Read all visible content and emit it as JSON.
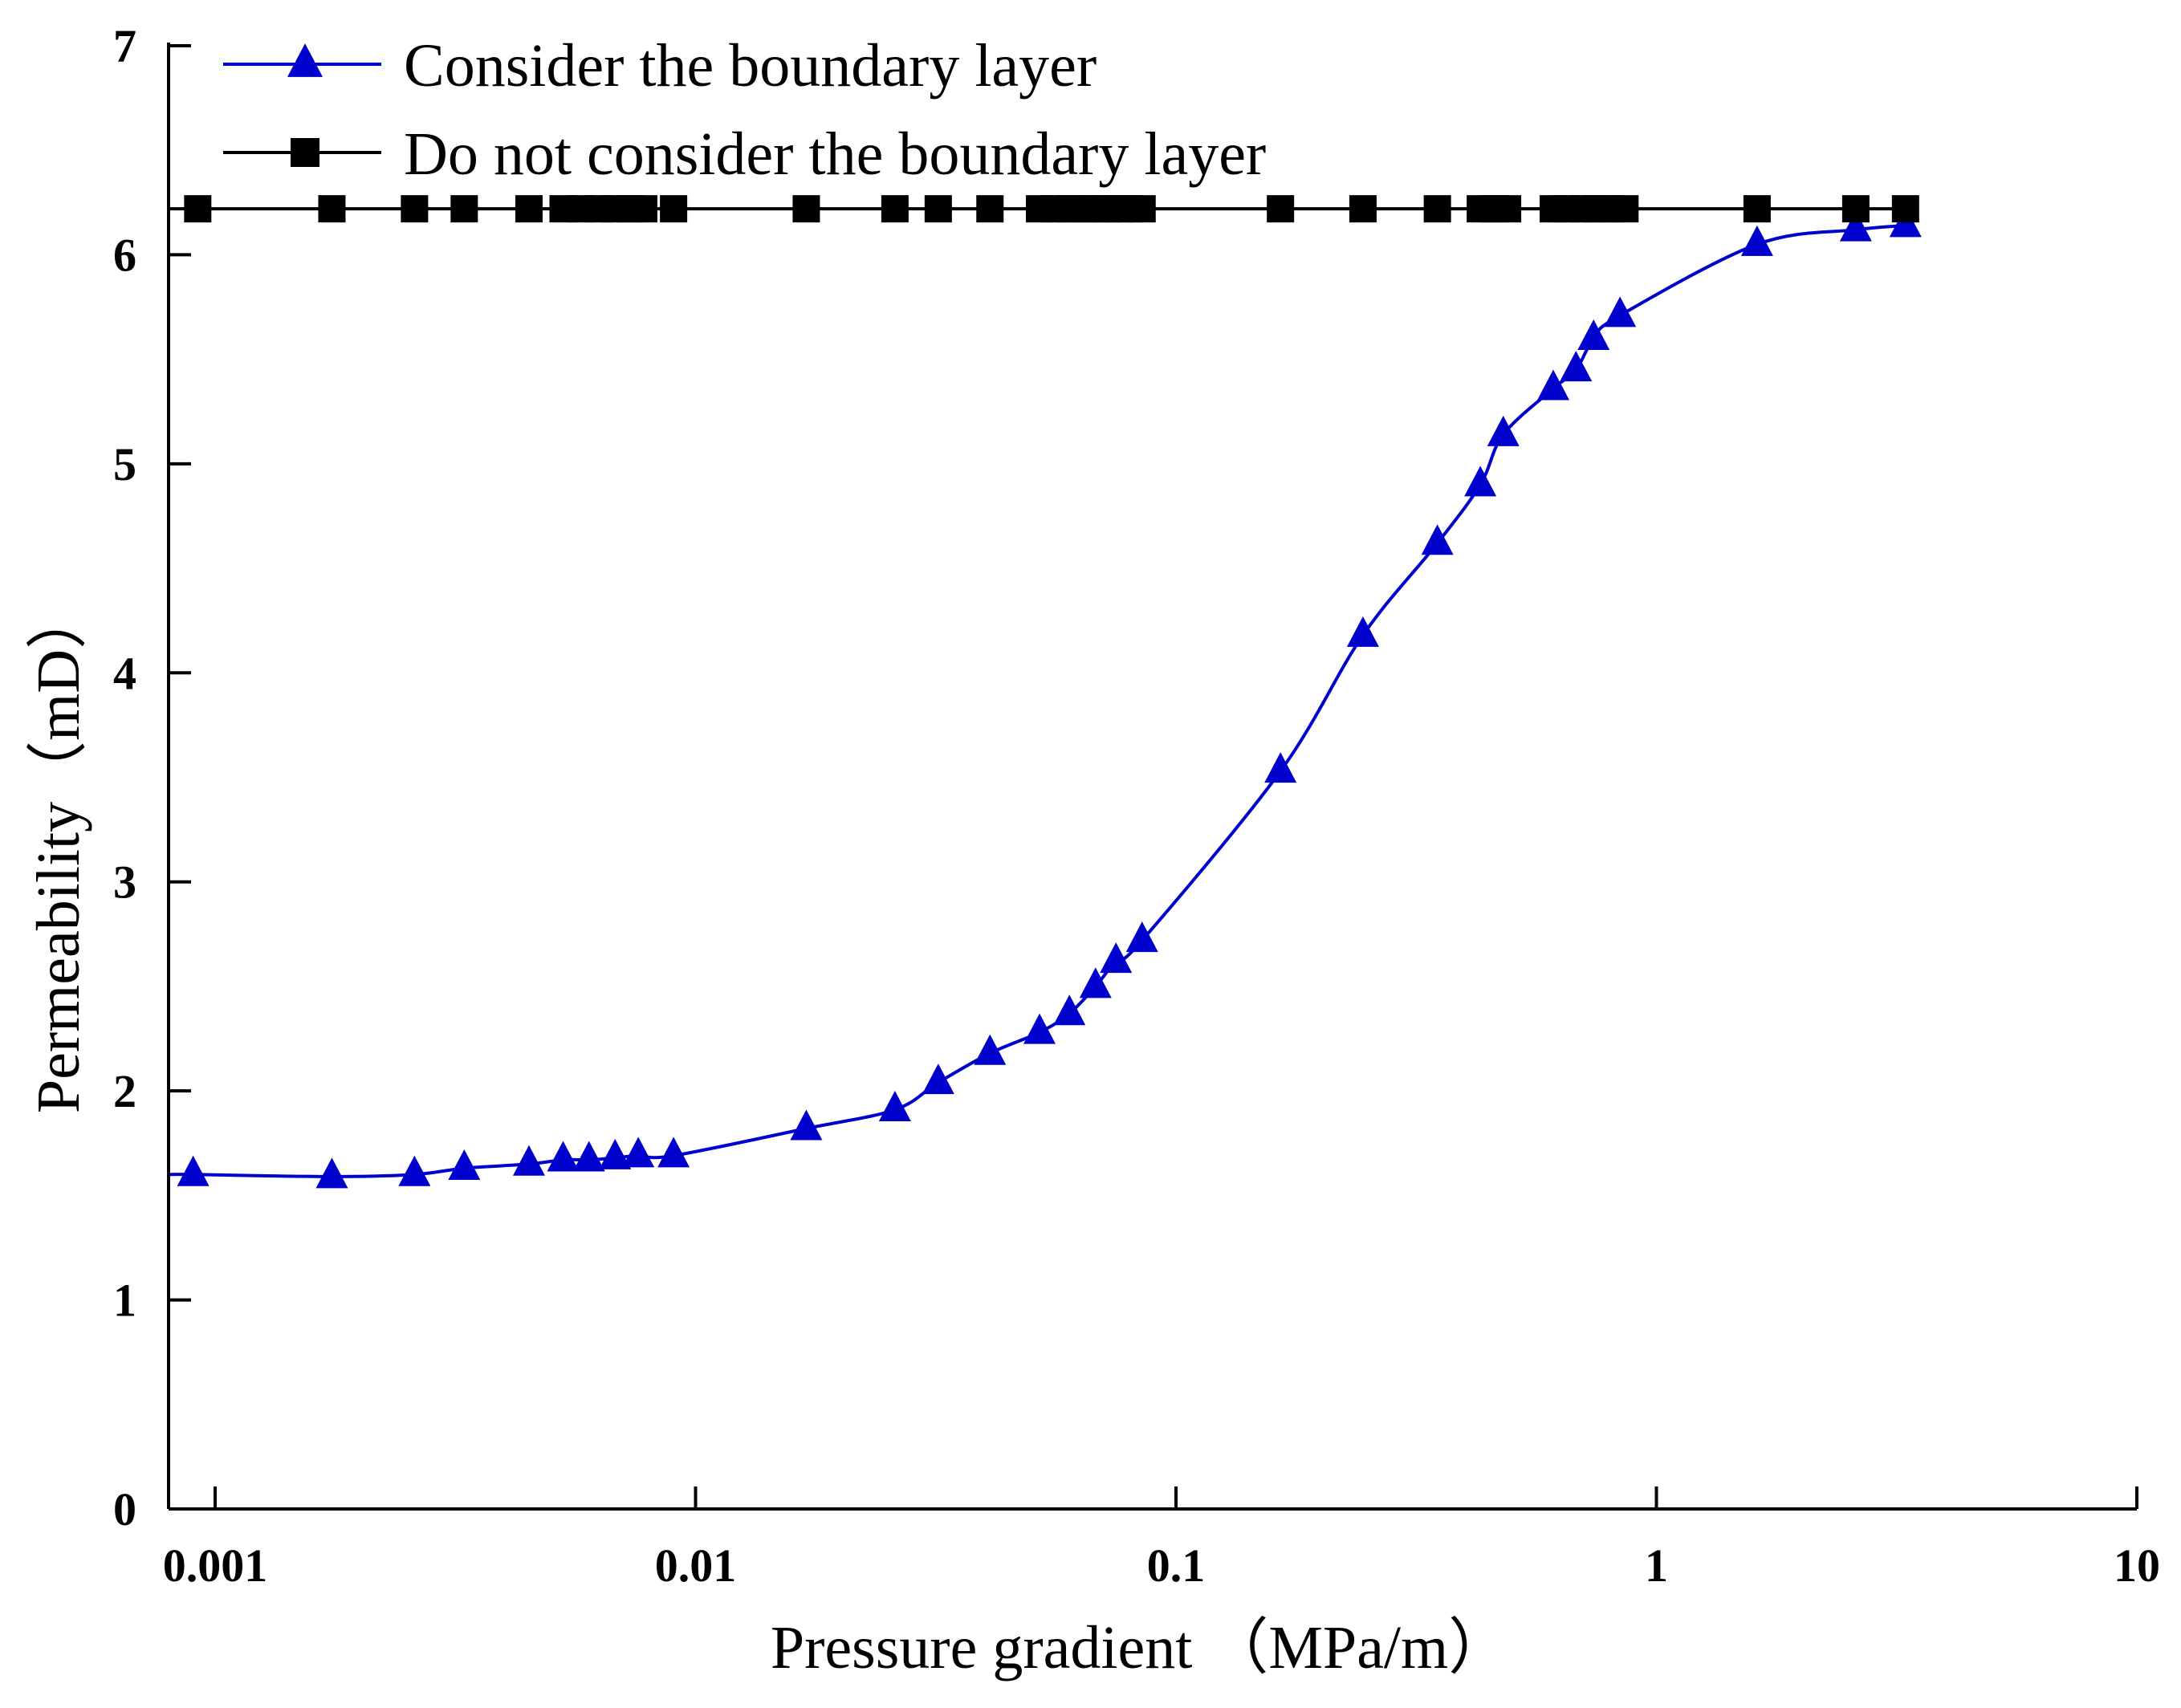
{
  "chart_data": {
    "type": "line",
    "title": "",
    "xlabel": "Pressure gradient （MPa/m）",
    "ylabel": "Permeability（mD）",
    "xscale": "log",
    "xlim": [
      0.0008,
      10
    ],
    "ylim": [
      0,
      7
    ],
    "x_ticks": [
      0.001,
      0.01,
      0.1,
      1,
      10
    ],
    "x_tick_labels": [
      "0.001",
      "0.01",
      "0.1",
      "1",
      "10"
    ],
    "y_ticks": [
      0,
      1,
      2,
      3,
      4,
      5,
      6,
      7
    ],
    "y_tick_labels": [
      "0",
      "1",
      "2",
      "3",
      "4",
      "5",
      "6",
      "7"
    ],
    "legend_position": "top-left",
    "grid": false,
    "series": [
      {
        "name": "Consider the boundary layer",
        "color": "#0000cc",
        "marker": "triangle",
        "x": [
          0.0009,
          0.00175,
          0.0026,
          0.0033,
          0.0045,
          0.0053,
          0.006,
          0.0068,
          0.0076,
          0.009,
          0.017,
          0.026,
          0.032,
          0.041,
          0.052,
          0.06,
          0.068,
          0.075,
          0.085,
          0.165,
          0.245,
          0.35,
          0.43,
          0.48,
          0.61,
          0.68,
          0.74,
          0.84,
          1.62,
          2.6,
          3.3
        ],
        "y": [
          1.6,
          1.59,
          1.6,
          1.63,
          1.65,
          1.67,
          1.67,
          1.68,
          1.69,
          1.69,
          1.82,
          1.91,
          2.04,
          2.18,
          2.28,
          2.37,
          2.5,
          2.62,
          2.72,
          3.53,
          4.18,
          4.62,
          4.9,
          5.14,
          5.36,
          5.45,
          5.6,
          5.71,
          6.05,
          6.12,
          6.14
        ]
      },
      {
        "name": "Do not consider the boundary layer",
        "color": "#000000",
        "marker": "square",
        "x": [
          0.00092,
          0.00175,
          0.0026,
          0.0033,
          0.0045,
          0.0053,
          0.0058,
          0.0063,
          0.0068,
          0.0073,
          0.0078,
          0.009,
          0.017,
          0.026,
          0.032,
          0.041,
          0.052,
          0.056,
          0.06,
          0.064,
          0.068,
          0.072,
          0.076,
          0.08,
          0.085,
          0.165,
          0.245,
          0.35,
          0.43,
          0.46,
          0.49,
          0.61,
          0.65,
          0.7,
          0.75,
          0.8,
          0.86,
          1.62,
          2.6,
          3.3
        ],
        "y": [
          6.22,
          6.22,
          6.22,
          6.22,
          6.22,
          6.22,
          6.22,
          6.22,
          6.22,
          6.22,
          6.22,
          6.22,
          6.22,
          6.22,
          6.22,
          6.22,
          6.22,
          6.22,
          6.22,
          6.22,
          6.22,
          6.22,
          6.22,
          6.22,
          6.22,
          6.22,
          6.22,
          6.22,
          6.22,
          6.22,
          6.22,
          6.22,
          6.22,
          6.22,
          6.22,
          6.22,
          6.22,
          6.22,
          6.22,
          6.22
        ]
      }
    ]
  }
}
